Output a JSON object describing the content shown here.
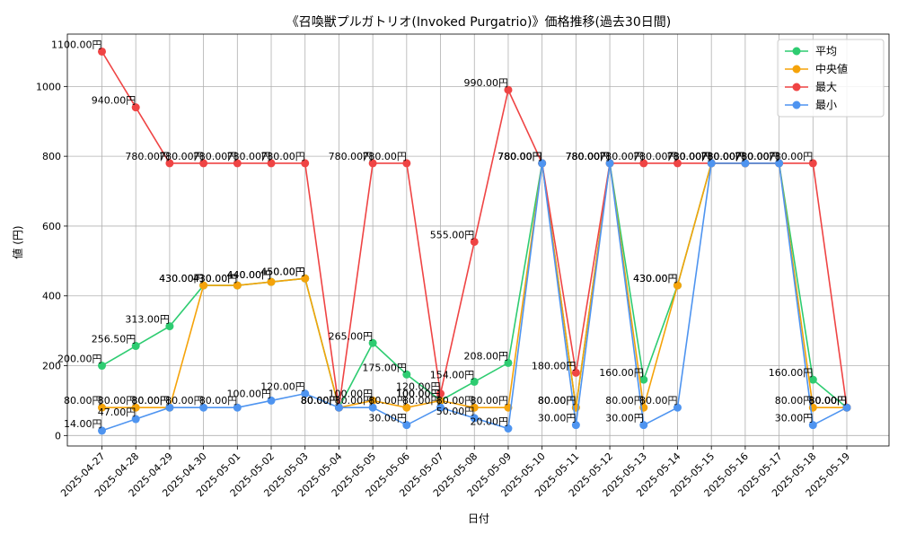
{
  "chart_data": {
    "type": "line",
    "title": "《召喚獣プルガトリオ(Invoked Purgatrio)》価格推移(過去30日間)",
    "xlabel": "日付",
    "ylabel": "値 (円)",
    "ylim": [
      -30,
      1150
    ],
    "yticks": [
      0,
      200,
      400,
      600,
      800,
      1000
    ],
    "grid": true,
    "legend_position": "top-right",
    "label_suffix": "円",
    "categories": [
      "2025-04-27",
      "2025-04-28",
      "2025-04-29",
      "2025-04-30",
      "2025-05-01",
      "2025-05-02",
      "2025-05-03",
      "2025-05-04",
      "2025-05-05",
      "2025-05-06",
      "2025-05-07",
      "2025-05-08",
      "2025-05-09",
      "2025-05-10",
      "2025-05-11",
      "2025-05-12",
      "2025-05-13",
      "2025-05-14",
      "2025-05-15",
      "2025-05-16",
      "2025-05-17",
      "2025-05-18",
      "2025-05-19"
    ],
    "series": [
      {
        "name": "平均",
        "color": "#2ecc71",
        "values": [
          200,
          256.5,
          313,
          430,
          430,
          440,
          450,
          80,
          265,
          175,
          100,
          154,
          208,
          780,
          80,
          780,
          160,
          430,
          780,
          780,
          780,
          160,
          80
        ]
      },
      {
        "name": "中央値",
        "color": "#f5a30a",
        "values": [
          80,
          80,
          80,
          430,
          430,
          440,
          450,
          80,
          100,
          80,
          100,
          80,
          80,
          780,
          80,
          780,
          80,
          430,
          780,
          780,
          780,
          80,
          80
        ]
      },
      {
        "name": "最大",
        "color": "#ef4444",
        "values": [
          1100,
          940,
          780,
          780,
          780,
          780,
          780,
          80,
          780,
          780,
          120,
          555,
          990,
          780,
          180,
          780,
          780,
          780,
          780,
          780,
          780,
          780,
          80
        ]
      },
      {
        "name": "最小",
        "color": "#4e94f0",
        "values": [
          14,
          47,
          80,
          80,
          80,
          100,
          120,
          80,
          80,
          30,
          80,
          50,
          20,
          780,
          30,
          780,
          30,
          80,
          780,
          780,
          780,
          30,
          80
        ]
      }
    ]
  }
}
